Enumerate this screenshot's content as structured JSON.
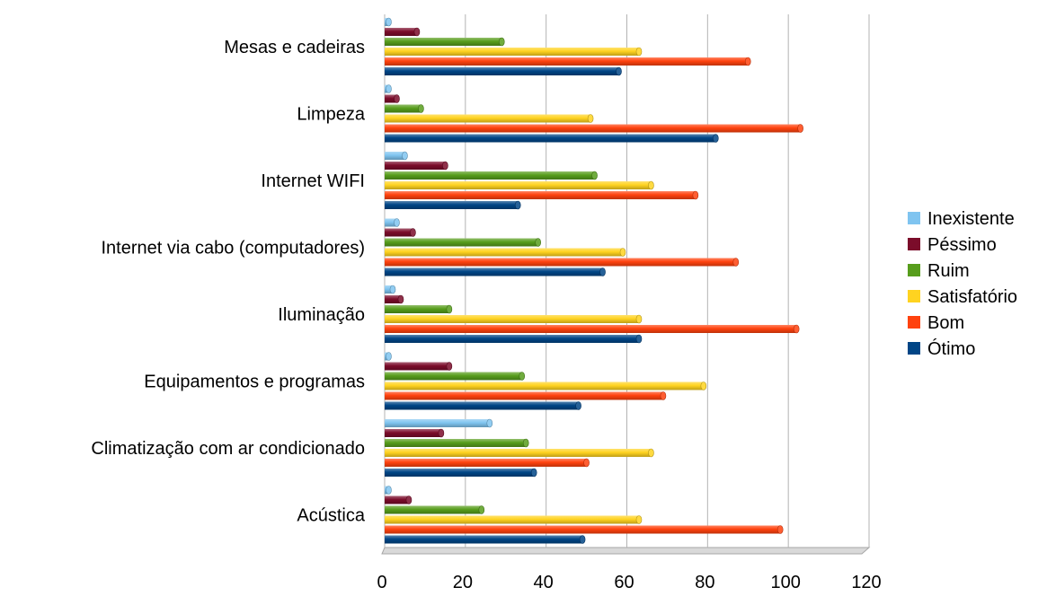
{
  "chart_data": {
    "type": "bar",
    "orientation": "horizontal",
    "title": "",
    "xlabel": "",
    "ylabel": "",
    "xlim": [
      0,
      120
    ],
    "x_ticks": [
      "0",
      "20",
      "40",
      "60",
      "80",
      "100",
      "120"
    ],
    "grid": "vertical",
    "legend_position": "right",
    "categories": [
      "Mesas e cadeiras",
      "Limpeza",
      "Internet WIFI",
      "Internet via cabo (computadores)",
      "Iluminação",
      "Equipamentos e programas",
      "Climatização com ar condicionado",
      "Acústica"
    ],
    "series": [
      {
        "name": "Inexistente",
        "color": "#7FC4F0",
        "values": [
          1,
          1,
          5,
          3,
          2,
          1,
          26,
          1
        ]
      },
      {
        "name": "Péssimo",
        "color": "#7B0C2A",
        "values": [
          8,
          3,
          15,
          7,
          4,
          16,
          14,
          6
        ]
      },
      {
        "name": "Ruim",
        "color": "#579D1C",
        "values": [
          29,
          9,
          52,
          38,
          16,
          34,
          35,
          24
        ]
      },
      {
        "name": "Satisfatório",
        "color": "#FFD320",
        "values": [
          63,
          51,
          66,
          59,
          63,
          79,
          66,
          63
        ]
      },
      {
        "name": "Bom",
        "color": "#FF420E",
        "values": [
          90,
          103,
          77,
          87,
          102,
          69,
          50,
          98
        ]
      },
      {
        "name": "Ótimo",
        "color": "#004586",
        "values": [
          58,
          82,
          33,
          54,
          63,
          48,
          37,
          49
        ]
      }
    ]
  }
}
